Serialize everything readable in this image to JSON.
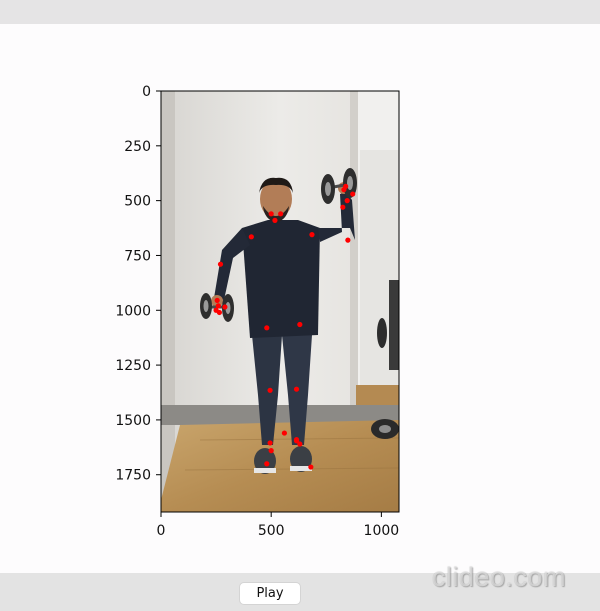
{
  "app": {
    "play_label": "Play",
    "watermark": "clideo.com"
  },
  "chart_data": {
    "type": "scatter",
    "title": "",
    "xlabel": "",
    "ylabel": "",
    "xlim": [
      0,
      1080
    ],
    "ylim": [
      1920,
      0
    ],
    "x_ticks": [
      0,
      500,
      1000
    ],
    "y_ticks": [
      0,
      250,
      500,
      750,
      1000,
      1250,
      1500,
      1750
    ],
    "x_tick_labels": [
      "0",
      "500",
      "1000"
    ],
    "y_tick_labels": [
      "0",
      "250",
      "500",
      "750",
      "1000",
      "1250",
      "1500",
      "1750"
    ],
    "keypoint_color": "#ff0000",
    "series": [
      {
        "x": [
          517,
          500,
          543,
          410,
          685,
          270,
          848,
          255,
          838,
          260,
          830,
          290,
          265,
          250,
          870,
          845,
          825,
          480,
          630,
          495,
          615,
          495,
          615,
          500,
          630,
          560,
          615,
          480,
          680
        ],
        "y": [
          590,
          560,
          560,
          665,
          655,
          790,
          680,
          955,
          435,
          980,
          450,
          985,
          1010,
          1000,
          470,
          500,
          530,
          1080,
          1065,
          1365,
          1360,
          1605,
          1595,
          1640,
          1610,
          1560,
          1590,
          1700,
          1715
        ]
      }
    ]
  }
}
